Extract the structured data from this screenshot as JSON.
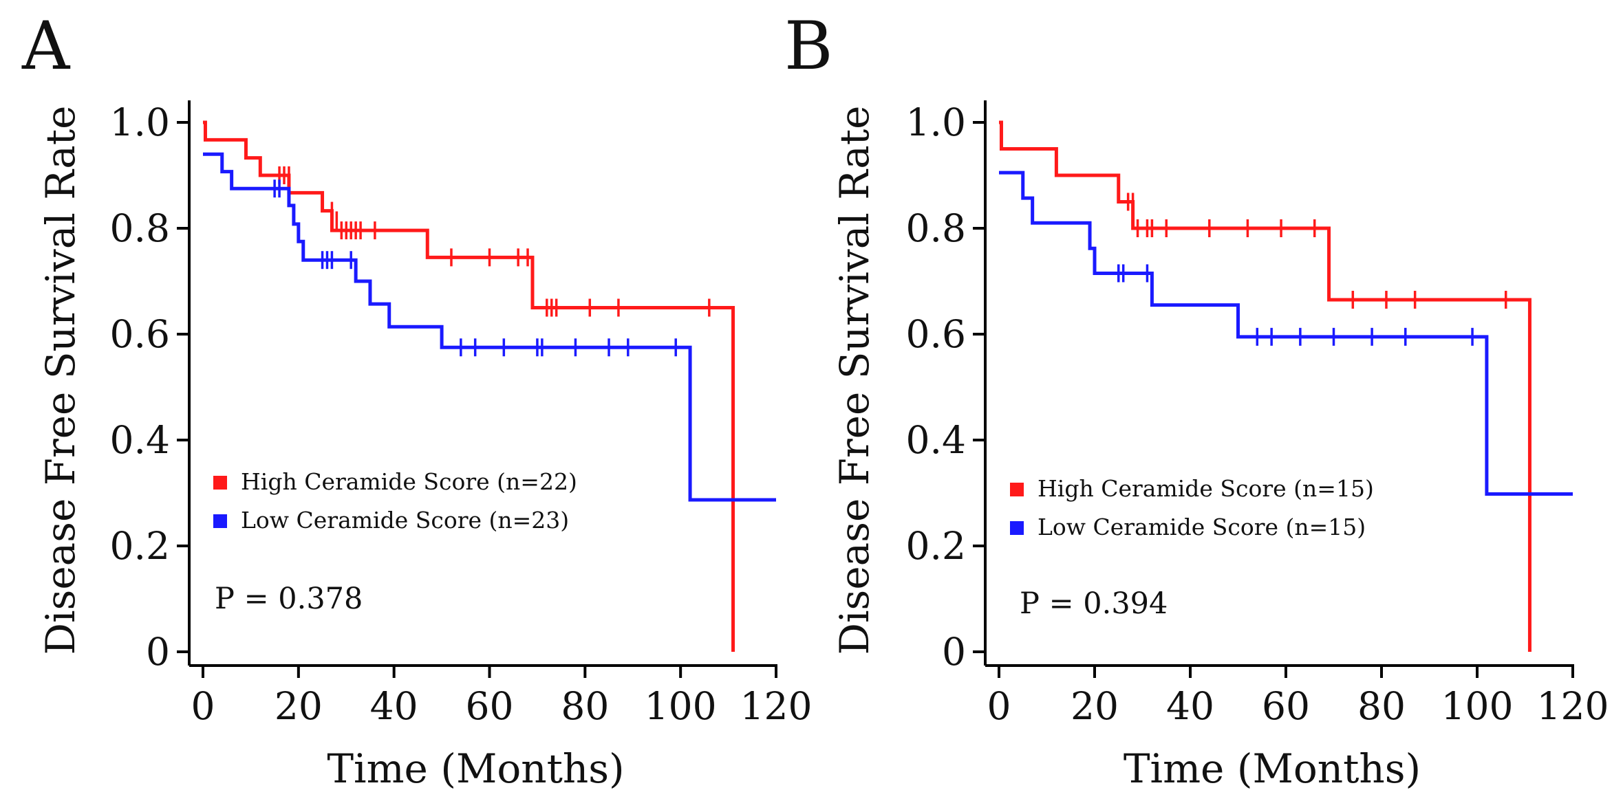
{
  "chart_data": [
    {
      "type": "line",
      "panel_label": "A",
      "xlabel": "Time (Months)",
      "ylabel": "Disease Free Survival Rate",
      "xlim": [
        0,
        120
      ],
      "ylim": [
        0,
        1.0
      ],
      "x_ticks": [
        0,
        20,
        40,
        60,
        80,
        100,
        120
      ],
      "x_tick_labels": [
        "0",
        "20",
        "40",
        "60",
        "80",
        "100",
        "120"
      ],
      "y_ticks": [
        0,
        0.2,
        0.4,
        0.6,
        0.8,
        1.0
      ],
      "y_tick_labels": [
        "0",
        "0.2",
        "0.4",
        "0.6",
        "0.8",
        "1.0"
      ],
      "legend_position": "lower-left",
      "p_value_text": "P = 0.378",
      "series": [
        {
          "name": "High Ceramide Score (n=22)",
          "color": "#ff1a1a",
          "steps": [
            [
              0,
              1.0
            ],
            [
              0.5,
              0.967
            ],
            [
              9,
              0.933
            ],
            [
              12,
              0.9
            ],
            [
              18,
              0.867
            ],
            [
              25,
              0.833
            ],
            [
              27,
              0.796
            ],
            [
              47,
              0.745
            ],
            [
              69,
              0.65
            ],
            [
              111,
              0.0
            ]
          ],
          "censored": [
            [
              16,
              0.9
            ],
            [
              17,
              0.9
            ],
            [
              18,
              0.9
            ],
            [
              27,
              0.833
            ],
            [
              28,
              0.815
            ],
            [
              29,
              0.796
            ],
            [
              30,
              0.796
            ],
            [
              31,
              0.796
            ],
            [
              32,
              0.796
            ],
            [
              33,
              0.796
            ],
            [
              36,
              0.796
            ],
            [
              52,
              0.745
            ],
            [
              60,
              0.745
            ],
            [
              66,
              0.745
            ],
            [
              68,
              0.745
            ],
            [
              72,
              0.65
            ],
            [
              73,
              0.65
            ],
            [
              74,
              0.65
            ],
            [
              81,
              0.65
            ],
            [
              87,
              0.65
            ],
            [
              106,
              0.65
            ]
          ]
        },
        {
          "name": "Low Ceramide Score (n=23)",
          "color": "#1a1aff",
          "steps": [
            [
              0,
              0.94
            ],
            [
              4,
              0.907
            ],
            [
              6,
              0.875
            ],
            [
              18,
              0.843
            ],
            [
              19,
              0.808
            ],
            [
              20,
              0.775
            ],
            [
              21,
              0.74
            ],
            [
              32,
              0.7
            ],
            [
              35,
              0.657
            ],
            [
              39,
              0.614
            ],
            [
              50,
              0.575
            ],
            [
              102,
              0.287
            ]
          ],
          "censored": [
            [
              15,
              0.875
            ],
            [
              16,
              0.875
            ],
            [
              25,
              0.74
            ],
            [
              26,
              0.74
            ],
            [
              27,
              0.74
            ],
            [
              31,
              0.74
            ],
            [
              54,
              0.575
            ],
            [
              57,
              0.575
            ],
            [
              63,
              0.575
            ],
            [
              70,
              0.575
            ],
            [
              71,
              0.575
            ],
            [
              78,
              0.575
            ],
            [
              85,
              0.575
            ],
            [
              89,
              0.575
            ],
            [
              99,
              0.575
            ]
          ],
          "end_x": 120
        }
      ]
    },
    {
      "type": "line",
      "panel_label": "B",
      "xlabel": "Time (Months)",
      "ylabel": "Disease Free Survival Rate",
      "xlim": [
        0,
        120
      ],
      "ylim": [
        0,
        1.0
      ],
      "x_ticks": [
        0,
        20,
        40,
        60,
        80,
        100,
        120
      ],
      "x_tick_labels": [
        "0",
        "20",
        "40",
        "60",
        "80",
        "100",
        "120"
      ],
      "y_ticks": [
        0,
        0.2,
        0.4,
        0.6,
        0.8,
        1.0
      ],
      "y_tick_labels": [
        "0",
        "0.2",
        "0.4",
        "0.6",
        "0.8",
        "1.0"
      ],
      "legend_position": "lower-left",
      "p_value_text": "P = 0.394",
      "series": [
        {
          "name": "High Ceramide Score (n=15)",
          "color": "#ff1a1a",
          "steps": [
            [
              0,
              1.0
            ],
            [
              0.5,
              0.95
            ],
            [
              12,
              0.9
            ],
            [
              25,
              0.85
            ],
            [
              28,
              0.8
            ],
            [
              69,
              0.665
            ],
            [
              111,
              0.0
            ]
          ],
          "censored": [
            [
              27,
              0.85
            ],
            [
              28,
              0.85
            ],
            [
              29,
              0.8
            ],
            [
              31,
              0.8
            ],
            [
              32,
              0.8
            ],
            [
              35,
              0.8
            ],
            [
              44,
              0.8
            ],
            [
              52,
              0.8
            ],
            [
              59,
              0.8
            ],
            [
              66,
              0.8
            ],
            [
              74,
              0.665
            ],
            [
              81,
              0.665
            ],
            [
              87,
              0.665
            ],
            [
              106,
              0.665
            ]
          ]
        },
        {
          "name": "Low Ceramide Score (n=15)",
          "color": "#1a1aff",
          "steps": [
            [
              0,
              0.905
            ],
            [
              5,
              0.857
            ],
            [
              7,
              0.81
            ],
            [
              19,
              0.762
            ],
            [
              20,
              0.715
            ],
            [
              32,
              0.655
            ],
            [
              50,
              0.595
            ],
            [
              102,
              0.298
            ]
          ],
          "censored": [
            [
              25,
              0.715
            ],
            [
              26,
              0.715
            ],
            [
              31,
              0.715
            ],
            [
              54,
              0.595
            ],
            [
              57,
              0.595
            ],
            [
              63,
              0.595
            ],
            [
              70,
              0.595
            ],
            [
              78,
              0.595
            ],
            [
              85,
              0.595
            ],
            [
              99,
              0.595
            ]
          ],
          "end_x": 120
        }
      ]
    }
  ]
}
